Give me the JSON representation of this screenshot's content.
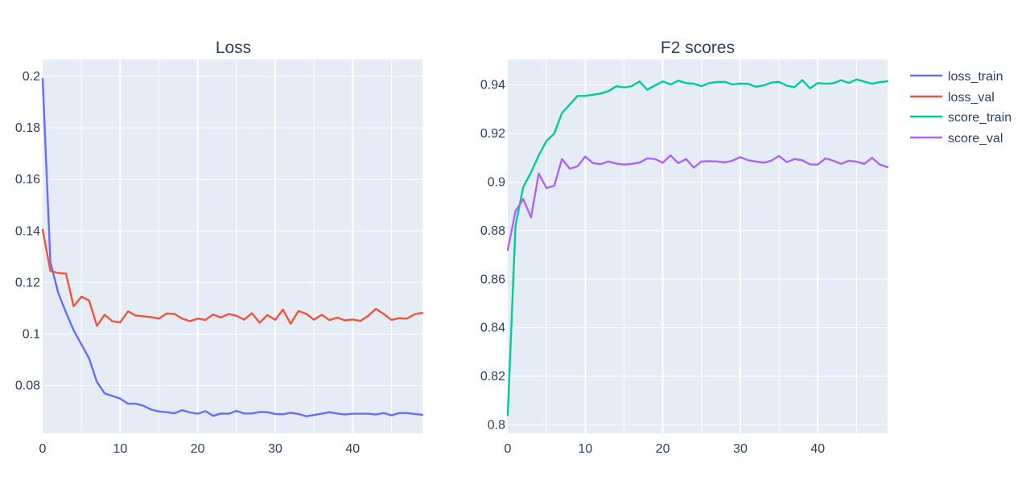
{
  "chart_data": [
    {
      "type": "line",
      "title": "Loss",
      "xlabel": "",
      "ylabel": "",
      "xlim": [
        0,
        49
      ],
      "ylim": [
        0.0615,
        0.2065
      ],
      "xticks": [
        0,
        10,
        20,
        30,
        40
      ],
      "xtick_labels": [
        "0",
        "10",
        "20",
        "30",
        "40"
      ],
      "yticks": [
        0.08,
        0.1,
        0.12,
        0.14,
        0.16,
        0.18,
        0.2
      ],
      "ytick_labels": [
        "0.08",
        "0.1",
        "0.12",
        "0.14",
        "0.16",
        "0.18",
        "0.2"
      ],
      "grid": true,
      "x": [
        0,
        1,
        2,
        3,
        4,
        5,
        6,
        7,
        8,
        9,
        10,
        11,
        12,
        13,
        14,
        15,
        16,
        17,
        18,
        19,
        20,
        21,
        22,
        23,
        24,
        25,
        26,
        27,
        28,
        29,
        30,
        31,
        32,
        33,
        34,
        35,
        36,
        37,
        38,
        39,
        40,
        41,
        42,
        43,
        44,
        45,
        46,
        47,
        48,
        49
      ],
      "series": [
        {
          "name": "loss_train",
          "color": "#636efa",
          "values": [
            0.199,
            0.128,
            0.116,
            0.1085,
            0.1015,
            0.096,
            0.0905,
            0.0815,
            0.077,
            0.076,
            0.075,
            0.073,
            0.073,
            0.0722,
            0.0707,
            0.07,
            0.0697,
            0.0693,
            0.0705,
            0.0696,
            0.0691,
            0.0701,
            0.0683,
            0.0692,
            0.0691,
            0.0702,
            0.0692,
            0.0692,
            0.0698,
            0.0697,
            0.069,
            0.0689,
            0.0695,
            0.069,
            0.0681,
            0.0686,
            0.0691,
            0.0697,
            0.0692,
            0.0688,
            0.0691,
            0.0691,
            0.0691,
            0.0688,
            0.0694,
            0.0685,
            0.0694,
            0.0694,
            0.069,
            0.0687
          ]
        },
        {
          "name": "loss_val",
          "color": "#ef553b",
          "values": [
            0.1405,
            0.1245,
            0.1237,
            0.1235,
            0.1108,
            0.1145,
            0.113,
            0.1032,
            0.1075,
            0.105,
            0.1045,
            0.1088,
            0.1072,
            0.1069,
            0.1066,
            0.106,
            0.108,
            0.1078,
            0.106,
            0.105,
            0.106,
            0.1055,
            0.1076,
            0.1064,
            0.1078,
            0.1071,
            0.1056,
            0.1081,
            0.1044,
            0.1074,
            0.1055,
            0.1095,
            0.104,
            0.109,
            0.1079,
            0.1056,
            0.1075,
            0.1054,
            0.1064,
            0.1053,
            0.1057,
            0.1051,
            0.1071,
            0.1098,
            0.1078,
            0.1055,
            0.1062,
            0.106,
            0.1077,
            0.1082
          ]
        }
      ]
    },
    {
      "type": "line",
      "title": "F2 scores",
      "xlabel": "",
      "ylabel": "",
      "xlim": [
        0,
        49
      ],
      "ylim": [
        0.7965,
        0.9505
      ],
      "xticks": [
        0,
        10,
        20,
        30,
        40
      ],
      "xtick_labels": [
        "0",
        "10",
        "20",
        "30",
        "40"
      ],
      "yticks": [
        0.8,
        0.82,
        0.84,
        0.86,
        0.88,
        0.9,
        0.92,
        0.94
      ],
      "ytick_labels": [
        "0.8",
        "0.82",
        "0.84",
        "0.86",
        "0.88",
        "0.9",
        "0.92",
        "0.94"
      ],
      "grid": true,
      "x": [
        0,
        1,
        2,
        3,
        4,
        5,
        6,
        7,
        8,
        9,
        10,
        11,
        12,
        13,
        14,
        15,
        16,
        17,
        18,
        19,
        20,
        21,
        22,
        23,
        24,
        25,
        26,
        27,
        28,
        29,
        30,
        31,
        32,
        33,
        34,
        35,
        36,
        37,
        38,
        39,
        40,
        41,
        42,
        43,
        44,
        45,
        46,
        47,
        48,
        49
      ],
      "series": [
        {
          "name": "score_train",
          "color": "#00cc96",
          "values": [
            0.804,
            0.882,
            0.898,
            0.904,
            0.911,
            0.917,
            0.92,
            0.9285,
            0.932,
            0.9355,
            0.9355,
            0.936,
            0.9365,
            0.9375,
            0.9395,
            0.939,
            0.9395,
            0.9415,
            0.938,
            0.9398,
            0.9415,
            0.9402,
            0.9418,
            0.9408,
            0.9405,
            0.9395,
            0.9408,
            0.9412,
            0.9413,
            0.9402,
            0.9406,
            0.9405,
            0.9393,
            0.9398,
            0.941,
            0.9413,
            0.9397,
            0.9391,
            0.942,
            0.9386,
            0.9408,
            0.9405,
            0.9407,
            0.942,
            0.9408,
            0.9423,
            0.9414,
            0.9405,
            0.9412,
            0.9415
          ]
        },
        {
          "name": "score_val",
          "color": "#ab63fa",
          "values": [
            0.872,
            0.888,
            0.893,
            0.8855,
            0.9035,
            0.8975,
            0.8985,
            0.9095,
            0.9055,
            0.9065,
            0.9105,
            0.9078,
            0.9074,
            0.9085,
            0.9076,
            0.9072,
            0.9075,
            0.908,
            0.9098,
            0.9095,
            0.908,
            0.911,
            0.9078,
            0.9095,
            0.906,
            0.9085,
            0.9086,
            0.9085,
            0.9081,
            0.9088,
            0.9103,
            0.909,
            0.9085,
            0.908,
            0.9088,
            0.9108,
            0.9082,
            0.9095,
            0.909,
            0.9073,
            0.9072,
            0.9098,
            0.9088,
            0.9075,
            0.9088,
            0.9084,
            0.9075,
            0.91,
            0.9072,
            0.9062
          ]
        }
      ]
    }
  ],
  "legend": {
    "placement": "top-right",
    "items": [
      {
        "label": "loss_train",
        "color": "#636efa"
      },
      {
        "label": "loss_val",
        "color": "#ef553b"
      },
      {
        "label": "score_train",
        "color": "#00cc96"
      },
      {
        "label": "score_val",
        "color": "#ab63fa"
      }
    ]
  }
}
